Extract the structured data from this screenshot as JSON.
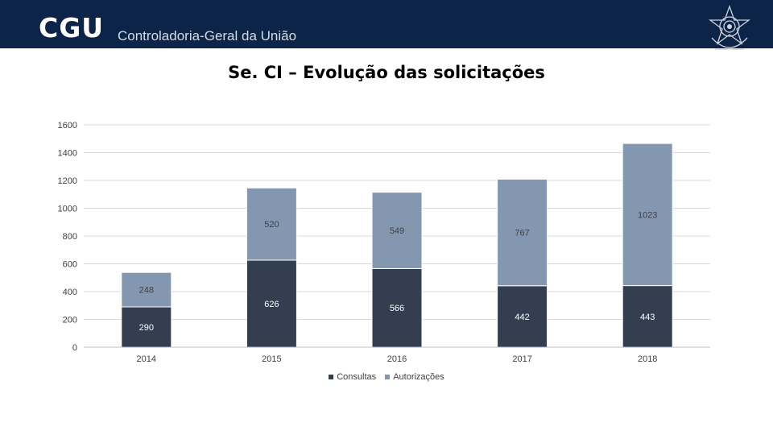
{
  "header": {
    "logo_text": "CGU",
    "org_name": "Controladoria-Geral da União",
    "bg_color": "#0b2447",
    "seal_icon": "coat-of-arms-icon"
  },
  "chart_data": {
    "type": "bar",
    "stacked": true,
    "title": "Se. CI – Evolução das solicitações",
    "categories": [
      "2014",
      "2015",
      "2016",
      "2017",
      "2018"
    ],
    "series": [
      {
        "name": "Consultas",
        "values": [
          290,
          626,
          566,
          442,
          443
        ],
        "color": "#333f50"
      },
      {
        "name": "Autorizações",
        "values": [
          248,
          520,
          549,
          767,
          1023
        ],
        "color": "#8497b0"
      }
    ],
    "ylim": [
      0,
      1600
    ],
    "yticks": [
      0,
      200,
      400,
      600,
      800,
      1000,
      1200,
      1400,
      1600
    ],
    "grid": true,
    "legend_position": "bottom"
  }
}
